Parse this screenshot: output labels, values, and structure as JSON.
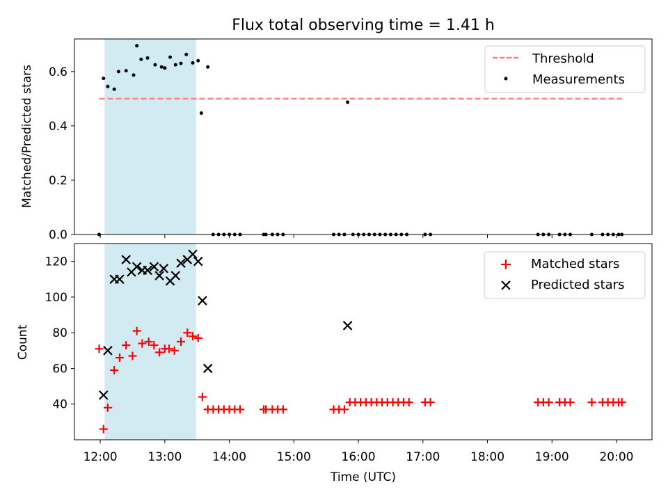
{
  "chart_data": {
    "title": "Flux total observing time = 1.41 h",
    "xlabel": "Time (UTC)",
    "x_ticks": [
      "12:00",
      "13:00",
      "14:00",
      "15:00",
      "16:00",
      "17:00",
      "18:00",
      "19:00",
      "20:00"
    ],
    "xlim_hours": [
      11.6,
      20.55
    ],
    "shaded_region": {
      "start": "12:04",
      "end": "13:29",
      "color": "#add8e6"
    },
    "top": {
      "type": "scatter",
      "ylabel": "Matched/Predicted stars",
      "ylim": [
        0,
        0.72
      ],
      "y_ticks": [
        "0.0",
        "0.2",
        "0.4",
        "0.6"
      ],
      "legend_position": "top-right",
      "threshold": {
        "label": "Threshold",
        "value": 0.5,
        "x_start": "11:59",
        "x_end": "20:05",
        "color": "#ff7f7f"
      },
      "measurements": {
        "label": "Measurements",
        "color": "#000000",
        "points": [
          [
            "11:59",
            0.0
          ],
          [
            "12:03",
            0.575
          ],
          [
            "12:07",
            0.545
          ],
          [
            "12:13",
            0.535
          ],
          [
            "12:17",
            0.6
          ],
          [
            "12:24",
            0.603
          ],
          [
            "12:31",
            0.587
          ],
          [
            "12:34",
            0.695
          ],
          [
            "12:38",
            0.645
          ],
          [
            "12:44",
            0.65
          ],
          [
            "12:51",
            0.625
          ],
          [
            "12:57",
            0.617
          ],
          [
            "13:00",
            0.613
          ],
          [
            "13:05",
            0.653
          ],
          [
            "13:10",
            0.625
          ],
          [
            "13:15",
            0.63
          ],
          [
            "13:20",
            0.663
          ],
          [
            "13:26",
            0.632
          ],
          [
            "13:31",
            0.64
          ],
          [
            "13:34",
            0.447
          ],
          [
            "13:40",
            0.617
          ],
          [
            "13:45",
            0.0
          ],
          [
            "13:50",
            0.0
          ],
          [
            "13:55",
            0.0
          ],
          [
            "14:00",
            0.0
          ],
          [
            "14:05",
            0.0
          ],
          [
            "14:10",
            0.0
          ],
          [
            "14:32",
            0.0
          ],
          [
            "14:34",
            0.0
          ],
          [
            "14:40",
            0.0
          ],
          [
            "14:45",
            0.0
          ],
          [
            "14:50",
            0.0
          ],
          [
            "15:37",
            0.0
          ],
          [
            "15:42",
            0.0
          ],
          [
            "15:47",
            0.0
          ],
          [
            "15:50",
            0.487
          ],
          [
            "15:55",
            0.0
          ],
          [
            "16:00",
            0.0
          ],
          [
            "16:05",
            0.0
          ],
          [
            "16:10",
            0.0
          ],
          [
            "16:15",
            0.0
          ],
          [
            "16:20",
            0.0
          ],
          [
            "16:25",
            0.0
          ],
          [
            "16:30",
            0.0
          ],
          [
            "16:35",
            0.0
          ],
          [
            "16:40",
            0.0
          ],
          [
            "16:45",
            0.0
          ],
          [
            "17:02",
            0.0
          ],
          [
            "17:07",
            0.0
          ],
          [
            "18:47",
            0.0
          ],
          [
            "18:52",
            0.0
          ],
          [
            "18:57",
            0.0
          ],
          [
            "19:07",
            0.0
          ],
          [
            "19:12",
            0.0
          ],
          [
            "19:17",
            0.0
          ],
          [
            "19:37",
            0.0
          ],
          [
            "19:47",
            0.0
          ],
          [
            "19:52",
            0.0
          ],
          [
            "19:57",
            0.0
          ],
          [
            "20:02",
            0.0
          ],
          [
            "20:05",
            0.0
          ]
        ]
      }
    },
    "bottom": {
      "type": "scatter",
      "ylabel": "Count",
      "ylim": [
        20,
        130
      ],
      "y_ticks": [
        40,
        60,
        80,
        100,
        120
      ],
      "legend_position": "top-right",
      "matched": {
        "label": "Matched stars",
        "marker": "plus",
        "color": "#ff0000",
        "points": [
          [
            "11:59",
            71
          ],
          [
            "12:03",
            26
          ],
          [
            "12:07",
            38
          ],
          [
            "12:13",
            59
          ],
          [
            "12:18",
            66
          ],
          [
            "12:24",
            73
          ],
          [
            "12:30",
            67
          ],
          [
            "12:34",
            81
          ],
          [
            "12:39",
            74
          ],
          [
            "12:45",
            75
          ],
          [
            "12:50",
            73
          ],
          [
            "12:55",
            69
          ],
          [
            "13:00",
            71
          ],
          [
            "13:04",
            71
          ],
          [
            "13:09",
            70
          ],
          [
            "13:15",
            75
          ],
          [
            "13:21",
            80
          ],
          [
            "13:26",
            78
          ],
          [
            "13:31",
            77
          ],
          [
            "13:35",
            44
          ],
          [
            "13:40",
            37
          ],
          [
            "13:45",
            37
          ],
          [
            "13:50",
            37
          ],
          [
            "13:55",
            37
          ],
          [
            "14:00",
            37
          ],
          [
            "14:05",
            37
          ],
          [
            "14:10",
            37
          ],
          [
            "14:32",
            37
          ],
          [
            "14:34",
            37
          ],
          [
            "14:40",
            37
          ],
          [
            "14:45",
            37
          ],
          [
            "14:50",
            37
          ],
          [
            "15:37",
            37
          ],
          [
            "15:42",
            37
          ],
          [
            "15:47",
            37
          ],
          [
            "15:52",
            41
          ],
          [
            "15:57",
            41
          ],
          [
            "16:02",
            41
          ],
          [
            "16:07",
            41
          ],
          [
            "16:12",
            41
          ],
          [
            "16:17",
            41
          ],
          [
            "16:22",
            41
          ],
          [
            "16:27",
            41
          ],
          [
            "16:32",
            41
          ],
          [
            "16:37",
            41
          ],
          [
            "16:42",
            41
          ],
          [
            "16:47",
            41
          ],
          [
            "17:02",
            41
          ],
          [
            "17:07",
            41
          ],
          [
            "18:47",
            41
          ],
          [
            "18:52",
            41
          ],
          [
            "18:57",
            41
          ],
          [
            "19:07",
            41
          ],
          [
            "19:12",
            41
          ],
          [
            "19:17",
            41
          ],
          [
            "19:37",
            41
          ],
          [
            "19:47",
            41
          ],
          [
            "19:52",
            41
          ],
          [
            "19:57",
            41
          ],
          [
            "20:02",
            41
          ],
          [
            "20:05",
            41
          ]
        ]
      },
      "predicted": {
        "label": "Predicted stars",
        "marker": "x",
        "color": "#000000",
        "points": [
          [
            "12:03",
            45
          ],
          [
            "12:07",
            70
          ],
          [
            "12:13",
            110
          ],
          [
            "12:18",
            110
          ],
          [
            "12:24",
            121
          ],
          [
            "12:29",
            114
          ],
          [
            "12:34",
            117
          ],
          [
            "12:39",
            115
          ],
          [
            "12:44",
            115
          ],
          [
            "12:50",
            117
          ],
          [
            "12:55",
            112
          ],
          [
            "12:59",
            116
          ],
          [
            "13:05",
            109
          ],
          [
            "13:10",
            112
          ],
          [
            "13:15",
            119
          ],
          [
            "13:21",
            121
          ],
          [
            "13:26",
            124
          ],
          [
            "13:31",
            120
          ],
          [
            "13:35",
            98
          ],
          [
            "13:40",
            60
          ],
          [
            "15:50",
            84
          ]
        ]
      }
    }
  }
}
